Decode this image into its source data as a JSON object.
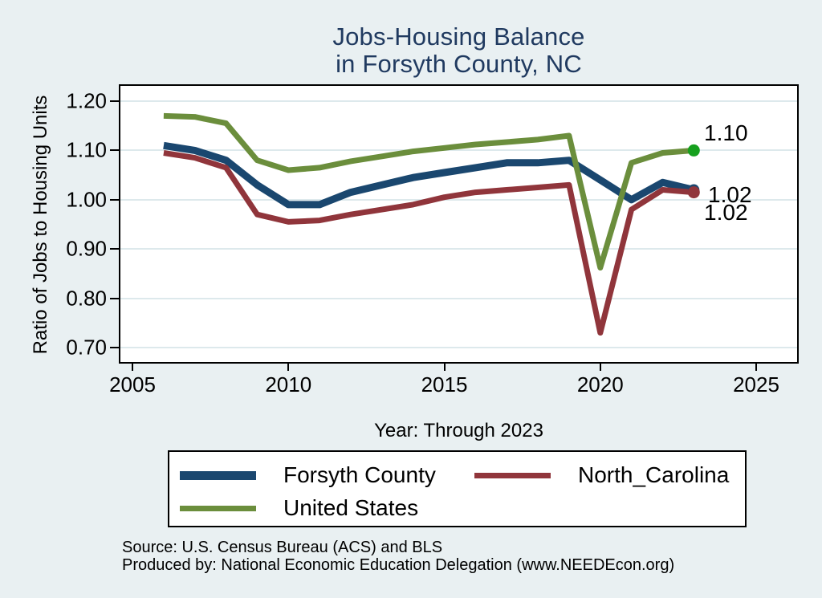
{
  "title": {
    "line1": "Jobs-Housing Balance",
    "line2": "in Forsyth County, NC"
  },
  "axes": {
    "y_title": "Ratio of Jobs to Housing Units",
    "x_title": "Year: Through 2023",
    "y_tick_labels": [
      "1.20",
      "1.10",
      "1.00",
      "0.90",
      "0.80",
      "0.70"
    ],
    "y_tick_values": [
      1.2,
      1.1,
      1.0,
      0.9,
      0.8,
      0.7
    ],
    "x_tick_labels": [
      "2005",
      "2010",
      "2015",
      "2020",
      "2025"
    ],
    "x_tick_values": [
      2005,
      2010,
      2015,
      2020,
      2025
    ]
  },
  "chart_data": {
    "type": "line",
    "title": "Jobs-Housing Balance in Forsyth County, NC",
    "xlabel": "Year: Through 2023",
    "ylabel": "Ratio of Jobs to Housing Units",
    "xlim": [
      2005,
      2025
    ],
    "ylim": [
      0.7,
      1.2
    ],
    "grid": "horizontal",
    "legend_position": "bottom",
    "x": [
      2006,
      2007,
      2008,
      2009,
      2010,
      2011,
      2012,
      2013,
      2014,
      2015,
      2016,
      2017,
      2018,
      2019,
      2020,
      2021,
      2022,
      2023
    ],
    "series": [
      {
        "name": "Forsyth County",
        "color": "#1a476f",
        "line_width": 9,
        "end_label": "1.02",
        "end_marker_color": "#1a476f",
        "values": [
          1.11,
          1.1,
          1.08,
          1.03,
          0.99,
          0.99,
          1.015,
          1.03,
          1.045,
          1.055,
          1.065,
          1.075,
          1.075,
          1.08,
          1.04,
          1.0,
          1.035,
          1.02
        ]
      },
      {
        "name": "North_Carolina",
        "color": "#90353b",
        "line_width": 7,
        "end_label": "1.02",
        "end_marker_color": "#90353b",
        "values": [
          1.095,
          1.085,
          1.065,
          0.97,
          0.955,
          0.958,
          0.97,
          0.98,
          0.99,
          1.005,
          1.015,
          1.02,
          1.025,
          1.03,
          0.73,
          0.98,
          1.02,
          1.015
        ]
      },
      {
        "name": "United States",
        "color": "#6b8e3c",
        "line_width": 7,
        "end_label": "1.10",
        "end_marker_color": "#16a01e",
        "values": [
          1.17,
          1.168,
          1.155,
          1.08,
          1.06,
          1.065,
          1.078,
          1.088,
          1.098,
          1.105,
          1.112,
          1.117,
          1.122,
          1.13,
          0.862,
          1.075,
          1.095,
          1.1
        ]
      }
    ]
  },
  "legend": {
    "items": [
      {
        "label": "Forsyth County",
        "color": "#1a476f",
        "thickness": 11
      },
      {
        "label": "North_Carolina",
        "color": "#90353b",
        "thickness": 7
      },
      {
        "label": "United States",
        "color": "#6b8e3c",
        "thickness": 7
      }
    ]
  },
  "footer": {
    "source_line": "Source: U.S. Census Bureau (ACS) and BLS",
    "produced_line": "Produced by: National Economic Education Delegation (www.NEEDEcon.org)"
  },
  "colors": {
    "background": "#e9f0f2",
    "plot_background": "#ffffff",
    "title_text": "#203a60",
    "grid_line": "#dde9ec",
    "axis_line": "#000000",
    "tick_text": "#000000",
    "end_marker_green": "#16a01e"
  }
}
